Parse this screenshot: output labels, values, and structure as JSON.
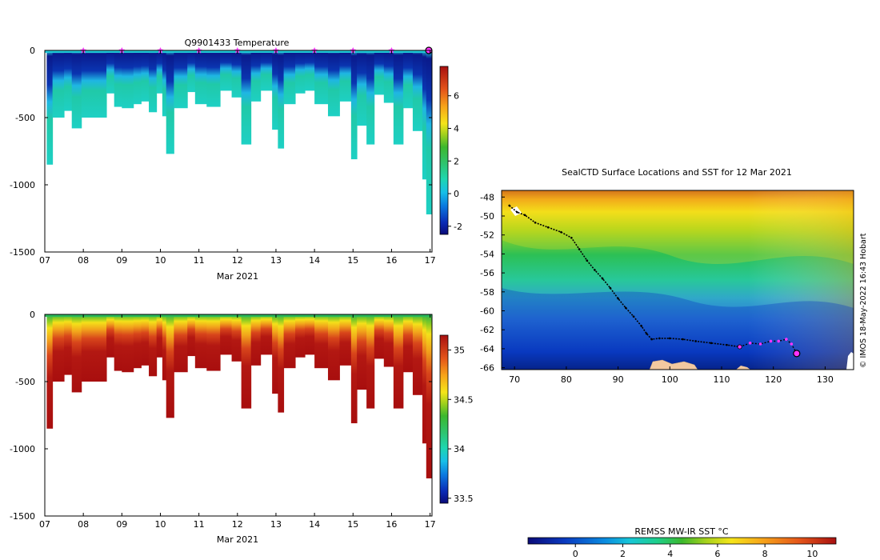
{
  "colors": {
    "ocean_deep": "#05186e",
    "land": "#f3c9a0",
    "marker": "#ff33ff",
    "track": "#000000"
  },
  "chart_data": [
    {
      "type": "heatmap",
      "title": "Q9901433  Temperature",
      "xlabel": "Mar 2021",
      "xticks": [
        "07",
        "08",
        "09",
        "10",
        "11",
        "12",
        "13",
        "14",
        "15",
        "16",
        "17"
      ],
      "xlim": [
        7,
        17.05
      ],
      "ylim": [
        -1500,
        0
      ],
      "yticks": [
        0,
        -500,
        -1000,
        -1500
      ],
      "ytick_labels": [
        "0",
        "-500",
        "-1000",
        "-1500"
      ],
      "profile_markers_days": [
        8,
        9,
        10,
        11,
        12,
        13,
        14,
        15,
        16
      ],
      "colorbar": {
        "min": -2.5,
        "max": 7.8,
        "ticks": [
          -2,
          0,
          2,
          4,
          6
        ],
        "tick_labels": [
          "-2",
          "0",
          "2",
          "4",
          "6"
        ]
      },
      "profile_max_depth_m": [
        {
          "day": 7.05,
          "depth": 850
        },
        {
          "day": 7.2,
          "depth": 500
        },
        {
          "day": 7.5,
          "depth": 450
        },
        {
          "day": 7.7,
          "depth": 580
        },
        {
          "day": 7.95,
          "depth": 500
        },
        {
          "day": 8.3,
          "depth": 500
        },
        {
          "day": 8.6,
          "depth": 320
        },
        {
          "day": 8.8,
          "depth": 420
        },
        {
          "day": 9.0,
          "depth": 430
        },
        {
          "day": 9.3,
          "depth": 400
        },
        {
          "day": 9.5,
          "depth": 380
        },
        {
          "day": 9.7,
          "depth": 460
        },
        {
          "day": 9.9,
          "depth": 320
        },
        {
          "day": 10.05,
          "depth": 490
        },
        {
          "day": 10.15,
          "depth": 770
        },
        {
          "day": 10.35,
          "depth": 430
        },
        {
          "day": 10.7,
          "depth": 310
        },
        {
          "day": 10.9,
          "depth": 400
        },
        {
          "day": 11.2,
          "depth": 420
        },
        {
          "day": 11.55,
          "depth": 300
        },
        {
          "day": 11.85,
          "depth": 350
        },
        {
          "day": 12.1,
          "depth": 700
        },
        {
          "day": 12.35,
          "depth": 380
        },
        {
          "day": 12.6,
          "depth": 300
        },
        {
          "day": 12.9,
          "depth": 590
        },
        {
          "day": 13.05,
          "depth": 730
        },
        {
          "day": 13.2,
          "depth": 400
        },
        {
          "day": 13.5,
          "depth": 320
        },
        {
          "day": 13.75,
          "depth": 300
        },
        {
          "day": 14.0,
          "depth": 400
        },
        {
          "day": 14.35,
          "depth": 490
        },
        {
          "day": 14.65,
          "depth": 380
        },
        {
          "day": 14.95,
          "depth": 810
        },
        {
          "day": 15.1,
          "depth": 560
        },
        {
          "day": 15.35,
          "depth": 700
        },
        {
          "day": 15.55,
          "depth": 330
        },
        {
          "day": 15.8,
          "depth": 390
        },
        {
          "day": 16.05,
          "depth": 700
        },
        {
          "day": 16.3,
          "depth": 430
        },
        {
          "day": 16.55,
          "depth": 600
        },
        {
          "day": 16.8,
          "depth": 960
        },
        {
          "day": 16.9,
          "depth": 1220
        }
      ]
    },
    {
      "type": "heatmap",
      "title": "",
      "xlabel": "Mar 2021",
      "xticks": [
        "07",
        "08",
        "09",
        "10",
        "11",
        "12",
        "13",
        "14",
        "15",
        "16",
        "17"
      ],
      "xlim": [
        7,
        17.05
      ],
      "ylim": [
        -1500,
        0
      ],
      "yticks": [
        0,
        -500,
        -1000,
        -1500
      ],
      "ytick_labels": [
        "0",
        "-500",
        "-1000",
        "-1500"
      ],
      "colorbar": {
        "min": 33.45,
        "max": 35.15,
        "ticks": [
          33.5,
          34,
          34.5,
          35
        ],
        "tick_labels": [
          "33.5",
          "34",
          "34.5",
          "35"
        ]
      }
    },
    {
      "type": "heatmap",
      "title": "SealCTD Surface Locations and SST for 12 Mar 2021",
      "xticks": [
        70,
        80,
        90,
        100,
        110,
        120,
        130
      ],
      "xtick_labels": [
        "70",
        "80",
        "90",
        "100",
        "110",
        "120",
        "130"
      ],
      "xlim": [
        67.5,
        135.5
      ],
      "yticks": [
        -48,
        -50,
        -52,
        -54,
        -56,
        -58,
        -60,
        -62,
        -64,
        -66
      ],
      "ytick_labels": [
        "-48",
        "-50",
        "-52",
        "-54",
        "-56",
        "-58",
        "-60",
        "-62",
        "-64",
        "-66"
      ],
      "ylim": [
        -66.2,
        -47.3
      ],
      "colorbar": {
        "label": "REMSS MW-IR SST °C",
        "min": -2,
        "max": 11,
        "ticks": [
          0,
          2,
          4,
          6,
          8,
          10
        ],
        "tick_labels": [
          "0",
          "2",
          "4",
          "6",
          "8",
          "10"
        ]
      },
      "credit": "© IMOS 18-May-2022 16:43 Hobart",
      "track": [
        {
          "lon": 69.0,
          "lat": -48.9
        },
        {
          "lon": 70.5,
          "lat": -49.6
        },
        {
          "lon": 72.0,
          "lat": -49.9
        },
        {
          "lon": 74.0,
          "lat": -50.7
        },
        {
          "lon": 76.5,
          "lat": -51.2
        },
        {
          "lon": 79.0,
          "lat": -51.7
        },
        {
          "lon": 81.0,
          "lat": -52.3
        },
        {
          "lon": 82.5,
          "lat": -53.5
        },
        {
          "lon": 84.0,
          "lat": -54.7
        },
        {
          "lon": 85.5,
          "lat": -55.7
        },
        {
          "lon": 87.0,
          "lat": -56.6
        },
        {
          "lon": 88.5,
          "lat": -57.6
        },
        {
          "lon": 90.0,
          "lat": -58.7
        },
        {
          "lon": 91.5,
          "lat": -59.7
        },
        {
          "lon": 93.0,
          "lat": -60.6
        },
        {
          "lon": 94.5,
          "lat": -61.6
        },
        {
          "lon": 95.5,
          "lat": -62.4
        },
        {
          "lon": 96.5,
          "lat": -63.0
        },
        {
          "lon": 98.0,
          "lat": -62.9
        },
        {
          "lon": 100.0,
          "lat": -62.9
        },
        {
          "lon": 102.5,
          "lat": -63.0
        },
        {
          "lon": 105.0,
          "lat": -63.2
        },
        {
          "lon": 108.0,
          "lat": -63.4
        },
        {
          "lon": 111.0,
          "lat": -63.6
        },
        {
          "lon": 113.5,
          "lat": -63.8
        }
      ],
      "recent_track": [
        {
          "lon": 113.5,
          "lat": -63.8
        },
        {
          "lon": 115.5,
          "lat": -63.4
        },
        {
          "lon": 117.5,
          "lat": -63.5
        },
        {
          "lon": 119.5,
          "lat": -63.2
        },
        {
          "lon": 121.0,
          "lat": -63.2
        },
        {
          "lon": 122.5,
          "lat": -63.0
        },
        {
          "lon": 123.5,
          "lat": -63.5
        },
        {
          "lon": 124.5,
          "lat": -64.5
        }
      ],
      "current_position": {
        "lon": 124.5,
        "lat": -64.5
      }
    }
  ]
}
